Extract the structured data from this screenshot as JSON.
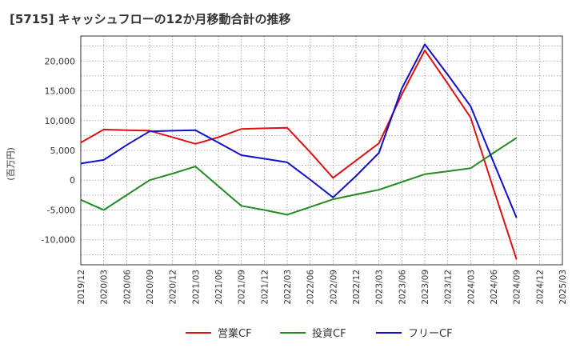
{
  "chart_data": {
    "type": "line",
    "title": "[5715]  キャッシュフローの12か月移動合計の推移",
    "ylabel": "(百万円)",
    "xlabel": "",
    "ylim": [
      -14200,
      24200
    ],
    "y_ticks": [
      -10000,
      -5000,
      0,
      5000,
      10000,
      15000,
      20000
    ],
    "y_tick_labels": [
      "-10,000",
      "-5,000",
      "0",
      "5,000",
      "10,000",
      "15,000",
      "20,000"
    ],
    "x": [
      "2019/12",
      "2020/03",
      "2020/06",
      "2020/09",
      "2020/12",
      "2021/03",
      "2021/06",
      "2021/09",
      "2021/12",
      "2022/03",
      "2022/06",
      "2022/09",
      "2022/12",
      "2023/03",
      "2023/06",
      "2023/09",
      "2023/12",
      "2024/03",
      "2024/06",
      "2024/09",
      "2024/12",
      "2025/03"
    ],
    "grid": true,
    "legend_position": "bottom",
    "series": [
      {
        "name": "営業CF",
        "color": "#dd1111",
        "values": [
          6300,
          8500,
          8400,
          8300,
          7200,
          6100,
          7200,
          8600,
          8700,
          8800,
          4700,
          400,
          3300,
          6200,
          14400,
          21800,
          16200,
          10500,
          -1500,
          -13300,
          null,
          null
        ]
      },
      {
        "name": "投資CF",
        "color": "#228b22",
        "values": [
          -3300,
          -5000,
          -2500,
          0,
          1100,
          2300,
          -1000,
          -4300,
          -5000,
          -5800,
          -4500,
          -3200,
          -2400,
          -1600,
          -300,
          1000,
          1500,
          2000,
          4600,
          7100,
          null,
          null
        ]
      },
      {
        "name": "フリーCF",
        "color": "#1010cc",
        "values": [
          2800,
          3400,
          5900,
          8200,
          8300,
          8400,
          6300,
          4200,
          3600,
          3000,
          100,
          -2900,
          700,
          4600,
          15400,
          22800,
          17700,
          12400,
          3000,
          -6300,
          null,
          null
        ]
      }
    ]
  }
}
